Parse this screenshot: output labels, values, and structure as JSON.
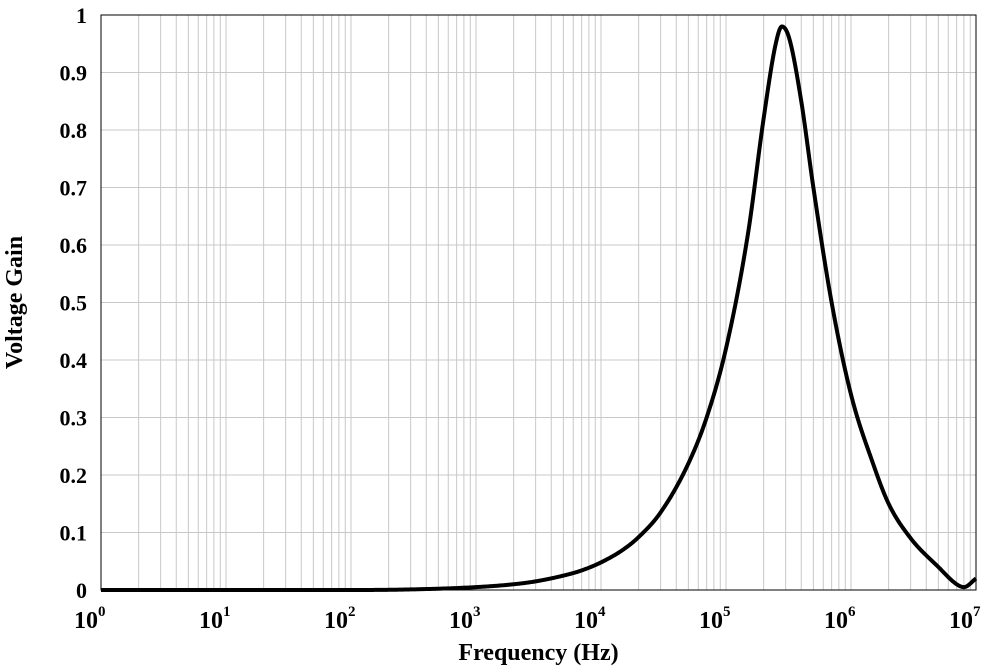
{
  "chart_data": {
    "type": "line",
    "title": "",
    "xlabel": "Frequency (Hz)",
    "ylabel": "Voltage Gain",
    "x_scale": "log",
    "xlim": [
      1,
      10000000
    ],
    "ylim": [
      0,
      1
    ],
    "grid": true,
    "x_ticks": [
      {
        "base": "10",
        "exp": "0"
      },
      {
        "base": "10",
        "exp": "1"
      },
      {
        "base": "10",
        "exp": "2"
      },
      {
        "base": "10",
        "exp": "3"
      },
      {
        "base": "10",
        "exp": "4"
      },
      {
        "base": "10",
        "exp": "5"
      },
      {
        "base": "10",
        "exp": "6"
      },
      {
        "base": "10",
        "exp": "7"
      }
    ],
    "y_ticks": [
      "0",
      "0.1",
      "0.2",
      "0.3",
      "0.4",
      "0.5",
      "0.6",
      "0.7",
      "0.8",
      "0.9",
      "1"
    ],
    "series": [
      {
        "color": "#000000",
        "x": [
          1,
          10,
          100,
          300,
          1000,
          2000,
          3000,
          5000,
          7000,
          10000,
          15000,
          20000,
          30000,
          50000,
          70000,
          100000,
          150000,
          200000,
          250000,
          280000,
          320000,
          400000,
          500000,
          700000,
          1000000,
          1500000,
          2000000,
          3000000,
          5000000,
          7000000,
          8000000,
          10000000
        ],
        "y": [
          0.0,
          0.0,
          0.0,
          0.001,
          0.005,
          0.01,
          0.015,
          0.025,
          0.034,
          0.048,
          0.07,
          0.092,
          0.135,
          0.22,
          0.3,
          0.42,
          0.62,
          0.82,
          0.95,
          0.98,
          0.96,
          0.85,
          0.7,
          0.5,
          0.34,
          0.22,
          0.15,
          0.09,
          0.04,
          0.01,
          0.005,
          0.02
        ]
      }
    ]
  }
}
